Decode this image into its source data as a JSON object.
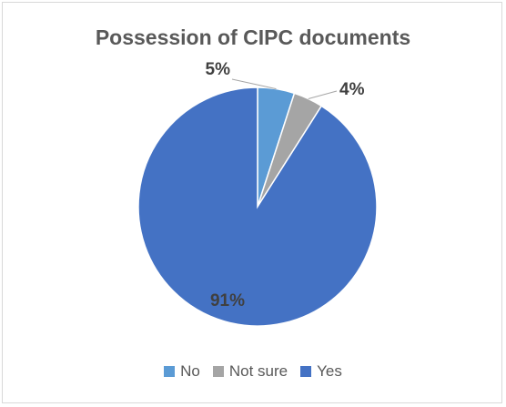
{
  "chart_data": {
    "type": "pie",
    "title": "Possession of CIPC documents",
    "labels": [
      "No",
      "Not sure",
      "Yes"
    ],
    "values": [
      5,
      4,
      91
    ],
    "value_labels": [
      "5%",
      "4%",
      "91%"
    ],
    "colors": [
      "#5b9bd5",
      "#a5a5a5",
      "#4472c4"
    ],
    "legend_position": "bottom"
  }
}
